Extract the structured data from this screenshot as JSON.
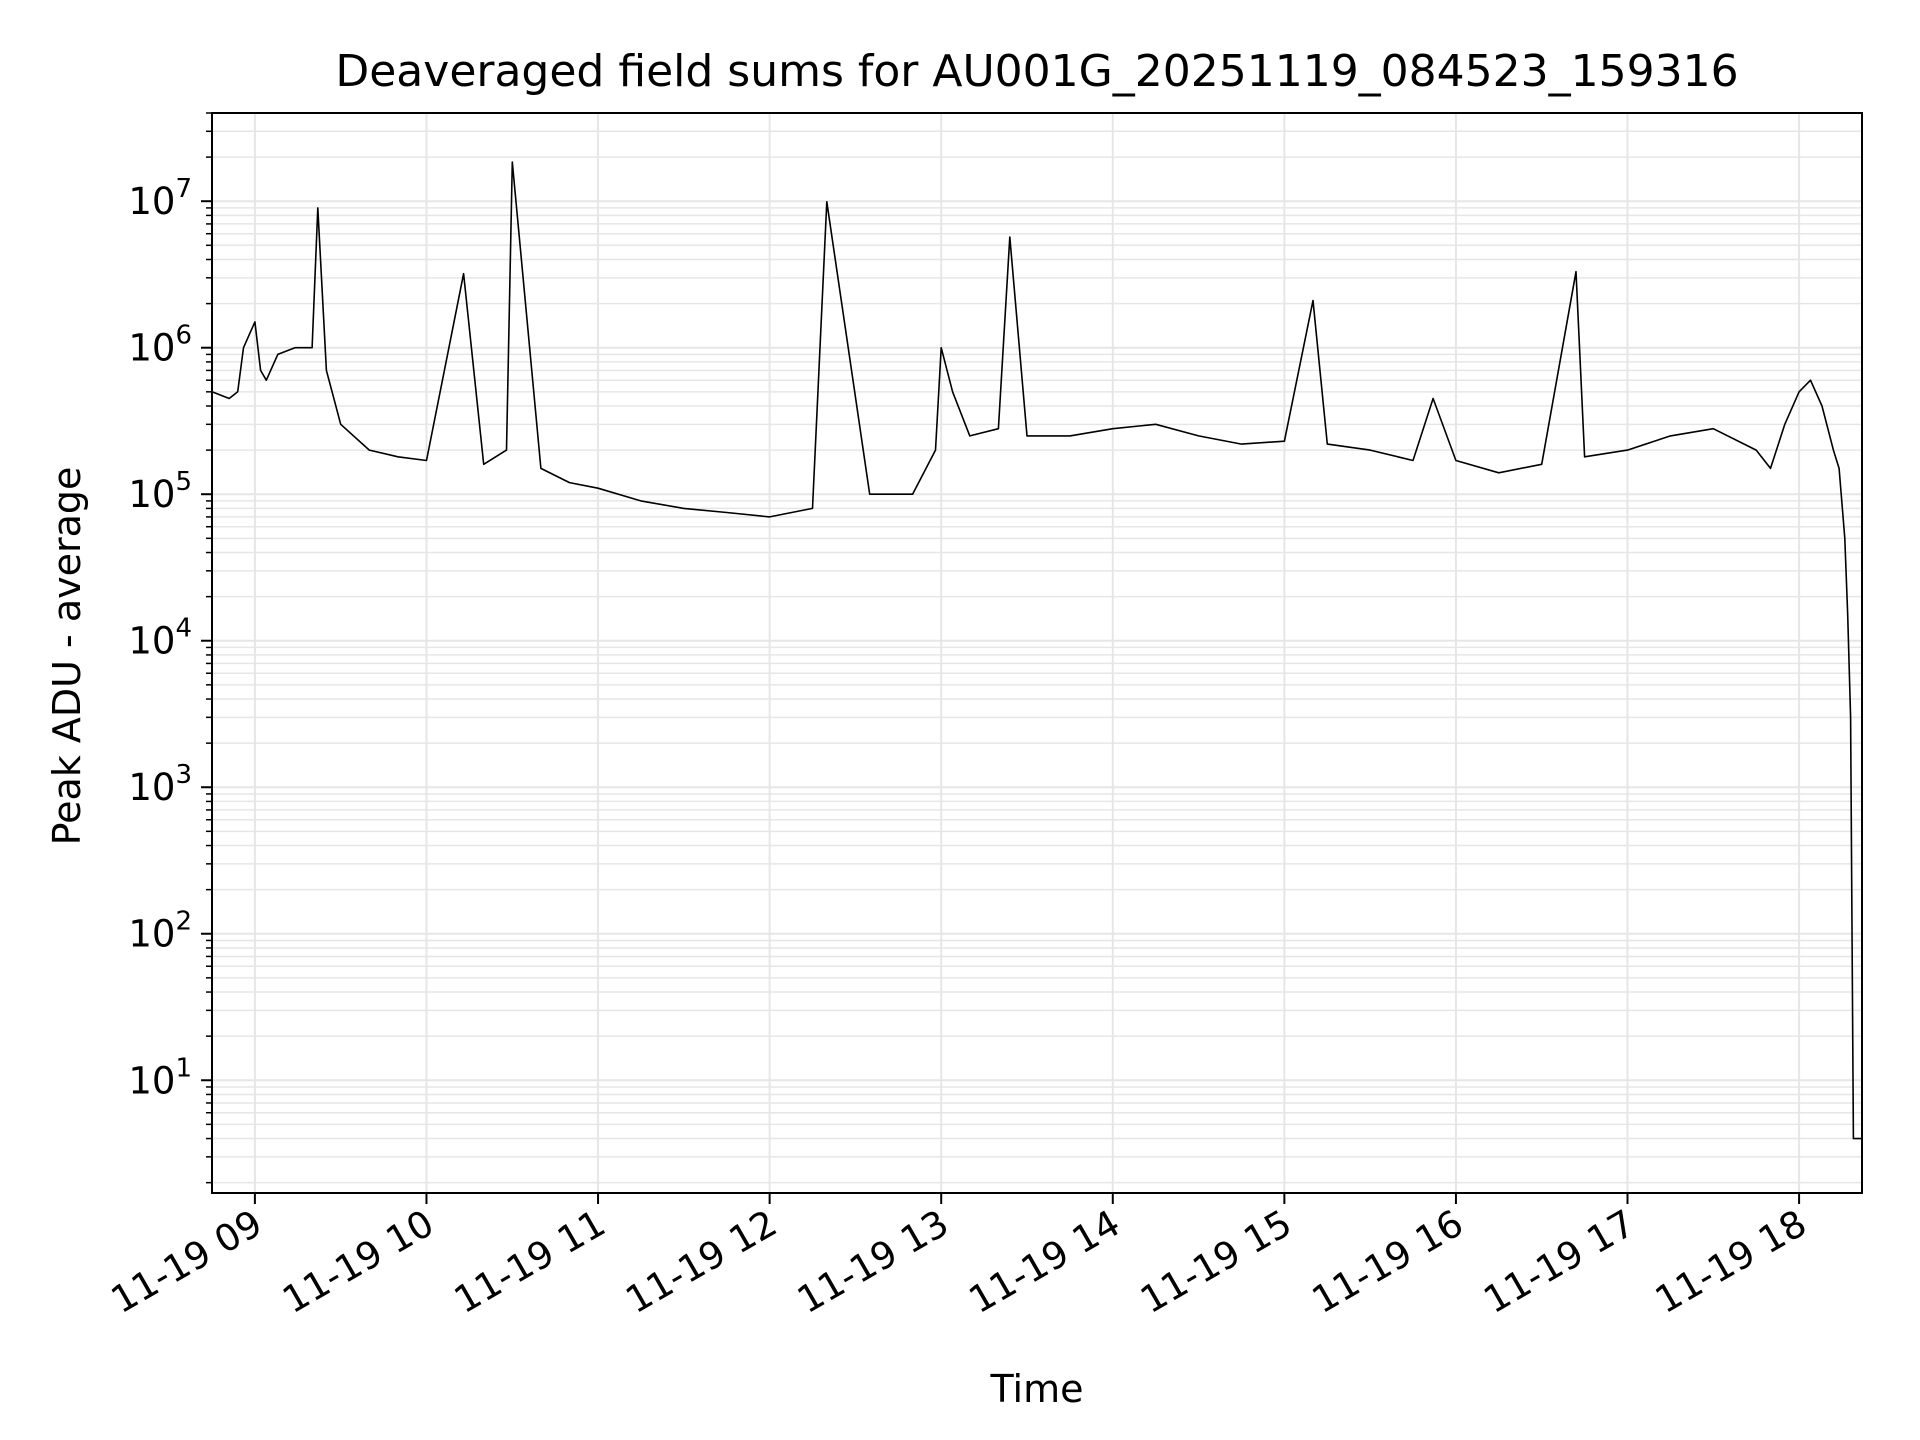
{
  "chart_data": {
    "type": "line",
    "title": "Deaveraged field sums for AU001G_20251119_084523_159316",
    "xlabel": "Time",
    "ylabel": "Peak ADU - average",
    "y_scale": "log",
    "ylim": [
      1.7,
      40000000
    ],
    "xlim": [
      "2025-11-19 08:45",
      "2025-11-19 18:22"
    ],
    "grid": true,
    "line_color": "#000000",
    "grid_color": "#e6e6e6",
    "x_ticks": [
      {
        "time": "2025-11-19 09:00",
        "label": "11-19 09"
      },
      {
        "time": "2025-11-19 10:00",
        "label": "11-19 10"
      },
      {
        "time": "2025-11-19 11:00",
        "label": "11-19 11"
      },
      {
        "time": "2025-11-19 12:00",
        "label": "11-19 12"
      },
      {
        "time": "2025-11-19 13:00",
        "label": "11-19 13"
      },
      {
        "time": "2025-11-19 14:00",
        "label": "11-19 14"
      },
      {
        "time": "2025-11-19 15:00",
        "label": "11-19 15"
      },
      {
        "time": "2025-11-19 16:00",
        "label": "11-19 16"
      },
      {
        "time": "2025-11-19 17:00",
        "label": "11-19 17"
      },
      {
        "time": "2025-11-19 18:00",
        "label": "11-19 18"
      }
    ],
    "y_ticks": [
      {
        "value": 10,
        "base": "10",
        "exp": "1"
      },
      {
        "value": 100,
        "base": "10",
        "exp": "2"
      },
      {
        "value": 1000,
        "base": "10",
        "exp": "3"
      },
      {
        "value": 10000,
        "base": "10",
        "exp": "4"
      },
      {
        "value": 100000,
        "base": "10",
        "exp": "5"
      },
      {
        "value": 1000000,
        "base": "10",
        "exp": "6"
      },
      {
        "value": 10000000,
        "base": "10",
        "exp": "7"
      }
    ],
    "series": [
      {
        "x": [
          "2025-11-19 08:45",
          "2025-11-19 08:51",
          "2025-11-19 08:54",
          "2025-11-19 08:56",
          "2025-11-19 09:00",
          "2025-11-19 09:02",
          "2025-11-19 09:04",
          "2025-11-19 09:08",
          "2025-11-19 09:14",
          "2025-11-19 09:20",
          "2025-11-19 09:22",
          "2025-11-19 09:25",
          "2025-11-19 09:30",
          "2025-11-19 09:40",
          "2025-11-19 09:50",
          "2025-11-19 10:00",
          "2025-11-19 10:13",
          "2025-11-19 10:20",
          "2025-11-19 10:28",
          "2025-11-19 10:30",
          "2025-11-19 10:40",
          "2025-11-19 10:50",
          "2025-11-19 11:00",
          "2025-11-19 11:15",
          "2025-11-19 11:30",
          "2025-11-19 11:45",
          "2025-11-19 12:00",
          "2025-11-19 12:15",
          "2025-11-19 12:20",
          "2025-11-19 12:35",
          "2025-11-19 12:50",
          "2025-11-19 12:58",
          "2025-11-19 13:00",
          "2025-11-19 13:04",
          "2025-11-19 13:10",
          "2025-11-19 13:20",
          "2025-11-19 13:24",
          "2025-11-19 13:30",
          "2025-11-19 13:45",
          "2025-11-19 14:00",
          "2025-11-19 14:15",
          "2025-11-19 14:30",
          "2025-11-19 14:45",
          "2025-11-19 15:00",
          "2025-11-19 15:10",
          "2025-11-19 15:15",
          "2025-11-19 15:30",
          "2025-11-19 15:45",
          "2025-11-19 15:52",
          "2025-11-19 16:00",
          "2025-11-19 16:15",
          "2025-11-19 16:30",
          "2025-11-19 16:42",
          "2025-11-19 16:45",
          "2025-11-19 17:00",
          "2025-11-19 17:15",
          "2025-11-19 17:30",
          "2025-11-19 17:45",
          "2025-11-19 17:50",
          "2025-11-19 17:55",
          "2025-11-19 18:00",
          "2025-11-19 18:04",
          "2025-11-19 18:08",
          "2025-11-19 18:12",
          "2025-11-19 18:14",
          "2025-11-19 18:16",
          "2025-11-19 18:17",
          "2025-11-19 18:18",
          "2025-11-19 18:19",
          "2025-11-19 18:22"
        ],
        "y": [
          500000,
          450000,
          500000,
          1000000,
          1500000,
          700000,
          600000,
          900000,
          1000000,
          1000000,
          9000000,
          700000,
          300000,
          200000,
          180000,
          170000,
          3200000,
          160000,
          200000,
          18500000,
          150000,
          120000,
          110000,
          90000,
          80000,
          75000,
          70000,
          80000,
          9900000,
          100000,
          100000,
          200000,
          1000000,
          500000,
          250000,
          280000,
          5700000,
          250000,
          250000,
          280000,
          300000,
          250000,
          220000,
          230000,
          2100000,
          220000,
          200000,
          170000,
          450000,
          170000,
          140000,
          160000,
          3300000,
          180000,
          200000,
          250000,
          280000,
          200000,
          150000,
          300000,
          500000,
          600000,
          400000,
          200000,
          150000,
          50000,
          15000,
          3000,
          4,
          4
        ]
      }
    ]
  }
}
